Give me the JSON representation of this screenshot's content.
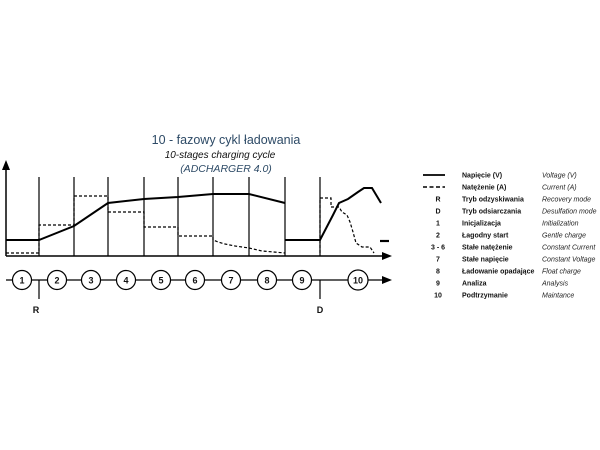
{
  "title": {
    "polish": "10 - fazowy cykl ładowania",
    "english": "10-stages charging cycle",
    "model": "(ADCHARGER 4.0)"
  },
  "stages": [
    "1",
    "2",
    "3",
    "4",
    "5",
    "6",
    "7",
    "8",
    "9",
    "10"
  ],
  "markers": [
    "R",
    "D"
  ],
  "legend": [
    {
      "symbol": "",
      "line": "solid",
      "polish": "Napięcie (V)",
      "english": "Voltage (V)"
    },
    {
      "symbol": "",
      "line": "dashed",
      "polish": "Natężenie (A)",
      "english": "Current (A)"
    },
    {
      "symbol": "R",
      "polish": "Tryb odzyskiwania",
      "english": "Recovery mode"
    },
    {
      "symbol": "D",
      "polish": "Tryb odsiarczania",
      "english": "Desulfation mode"
    },
    {
      "symbol": "1",
      "polish": "Inicjalizacja",
      "english": "Initialization"
    },
    {
      "symbol": "2",
      "polish": "Łagodny start",
      "english": "Gentle charge"
    },
    {
      "symbol": "3 - 6",
      "polish": "Stałe natężenie",
      "english": "Constant Current"
    },
    {
      "symbol": "7",
      "polish": "Stałe napięcie",
      "english": "Constant Voltage"
    },
    {
      "symbol": "8",
      "polish": "Ładowanie opadające",
      "english": "Float charge"
    },
    {
      "symbol": "9",
      "polish": "Analiza",
      "english": "Analysis"
    },
    {
      "symbol": "10",
      "polish": "Podtrzymanie",
      "english": "Maintance"
    }
  ]
}
